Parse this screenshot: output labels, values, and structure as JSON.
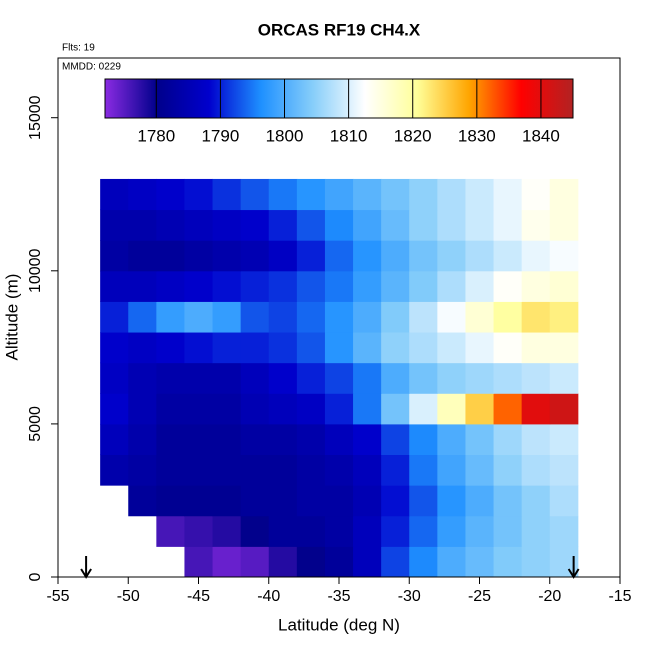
{
  "chart_data": {
    "type": "heatmap",
    "title": "ORCAS RF19 CH4.X",
    "annotations": [
      "Flts: 19",
      "MMDD: 0229"
    ],
    "x_label": "Latitude (deg N)",
    "y_label": "Altitude (m)",
    "xlim": [
      -55,
      -15
    ],
    "ylim": [
      0,
      16950
    ],
    "xticks": [
      -55,
      -50,
      -45,
      -40,
      -35,
      -30,
      -25,
      -20,
      -15
    ],
    "yticks": [
      0,
      5000,
      10000,
      15000
    ],
    "x": [
      -51,
      -49,
      -47,
      -45,
      -43,
      -41,
      -39,
      -37,
      -35,
      -33,
      -31,
      -29,
      -27,
      -25,
      -23,
      -21,
      -19
    ],
    "y": [
      500,
      1500,
      2500,
      3500,
      4500,
      5500,
      6500,
      7500,
      8500,
      9500,
      10500,
      11500,
      12500
    ],
    "z": [
      [
        null,
        null,
        null,
        1776,
        1774,
        1775,
        1778,
        1780,
        1782,
        1786,
        1792,
        1796,
        1800,
        1802,
        1804,
        1805,
        1806
      ],
      [
        null,
        null,
        1776,
        1777,
        1778,
        1780,
        1782,
        1782,
        1783,
        1786,
        1790,
        1794,
        1798,
        1801,
        1803,
        1805,
        1806
      ],
      [
        null,
        1782,
        1781,
        1781,
        1781,
        1782,
        1782,
        1783,
        1783,
        1785,
        1789,
        1793,
        1797,
        1800,
        1803,
        1805,
        1807
      ],
      [
        1784,
        1783,
        1782,
        1782,
        1782,
        1782,
        1782,
        1783,
        1784,
        1786,
        1790,
        1795,
        1799,
        1802,
        1805,
        1807,
        1808
      ],
      [
        1786,
        1784,
        1782,
        1782,
        1782,
        1783,
        1783,
        1784,
        1786,
        1788,
        1792,
        1796,
        1800,
        1803,
        1806,
        1808,
        1809
      ],
      [
        1788,
        1785,
        1783,
        1783,
        1783,
        1785,
        1786,
        1787,
        1790,
        1795,
        1803,
        1810,
        1818,
        1825,
        1832,
        1840,
        1842
      ],
      [
        1787,
        1785,
        1784,
        1784,
        1784,
        1786,
        1788,
        1790,
        1792,
        1795,
        1800,
        1803,
        1805,
        1806,
        1807,
        1808,
        1809
      ],
      [
        1788,
        1787,
        1788,
        1789,
        1790,
        1790,
        1791,
        1793,
        1797,
        1801,
        1805,
        1807,
        1809,
        1811,
        1813,
        1815,
        1815
      ],
      [
        1790,
        1794,
        1798,
        1800,
        1798,
        1793,
        1792,
        1794,
        1797,
        1800,
        1804,
        1808,
        1812,
        1816,
        1820,
        1823,
        1822
      ],
      [
        1786,
        1786,
        1787,
        1788,
        1789,
        1790,
        1791,
        1793,
        1795,
        1798,
        1801,
        1804,
        1807,
        1810,
        1813,
        1815,
        1816
      ],
      [
        1783,
        1782,
        1782,
        1783,
        1784,
        1785,
        1787,
        1790,
        1794,
        1797,
        1800,
        1803,
        1805,
        1807,
        1809,
        1811,
        1812
      ],
      [
        1784,
        1784,
        1785,
        1786,
        1787,
        1788,
        1790,
        1793,
        1796,
        1799,
        1802,
        1805,
        1807,
        1809,
        1811,
        1814,
        1815
      ],
      [
        1786,
        1787,
        1788,
        1789,
        1791,
        1793,
        1795,
        1797,
        1799,
        1801,
        1803,
        1805,
        1807,
        1809,
        1811,
        1813,
        1815
      ]
    ],
    "colorbar": {
      "lim": [
        1772,
        1845
      ],
      "ticks": [
        1780,
        1790,
        1800,
        1810,
        1820,
        1830,
        1840
      ],
      "colors": [
        "#8a2be2",
        "#00008b",
        "#0000cd",
        "#1e90ff",
        "#87cefa",
        "#ffffff",
        "#ffff99",
        "#ffa500",
        "#ff0000",
        "#b22222"
      ]
    },
    "arrows": [
      -53,
      -18.3
    ]
  }
}
